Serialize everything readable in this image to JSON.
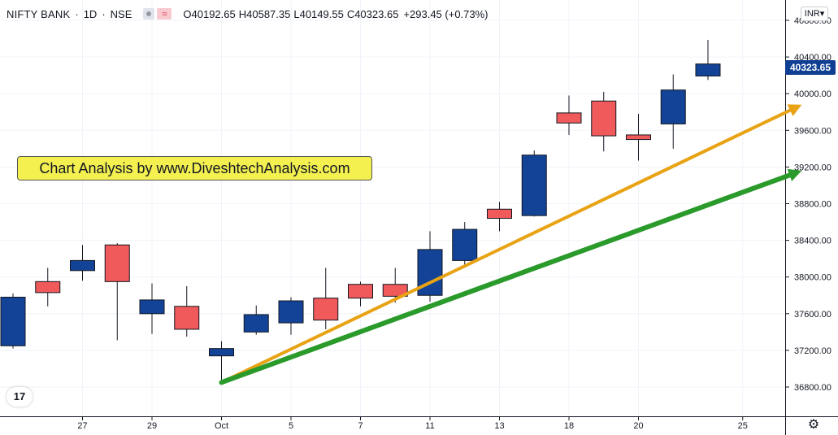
{
  "header": {
    "symbol": "NIFTY BANK",
    "interval": "1D",
    "exchange": "NSE",
    "open": "O40192.65",
    "high": "H40587.35",
    "low": "L40149.55",
    "close": "C40323.65",
    "change": "+293.45 (+0.73%)",
    "wave_icon": "≈"
  },
  "banner": {
    "text": "Chart Analysis by www.DiveshtechAnalysis.com"
  },
  "currency_button": "INR▾",
  "last_price": "40323.65",
  "tv_logo": "17",
  "settings_icon": "⚙",
  "colors": {
    "up": "#134397",
    "down": "#f05a5a",
    "trend_orange": "#e8a314",
    "trend_green": "#2a9a2a",
    "price_tag": "#0f3f93",
    "banner_bg": "#f3f050"
  },
  "chart_data": {
    "type": "candlestick",
    "y_range": [
      36600,
      40900
    ],
    "y_ticks": [
      36800,
      37200,
      37600,
      38000,
      38400,
      38800,
      39200,
      39600,
      40000,
      40400,
      40800
    ],
    "y_tick_labels": [
      "36800.00",
      "37200.00",
      "37600.00",
      "38000.00",
      "38400.00",
      "38800.00",
      "39200.00",
      "39600.00",
      "40000.00",
      "40400.00",
      "40800.00"
    ],
    "x_ticks": [
      {
        "index": 2,
        "label": "27"
      },
      {
        "index": 4,
        "label": "29"
      },
      {
        "index": 6,
        "label": "Oct"
      },
      {
        "index": 8,
        "label": "5"
      },
      {
        "index": 10,
        "label": "7"
      },
      {
        "index": 12,
        "label": "11"
      },
      {
        "index": 14,
        "label": "13"
      },
      {
        "index": 16,
        "label": "18"
      },
      {
        "index": 18,
        "label": "20"
      },
      {
        "index": 21,
        "label": "25"
      }
    ],
    "candles": [
      {
        "o": 37250,
        "h": 37820,
        "l": 37220,
        "c": 37780
      },
      {
        "o": 37950,
        "h": 38100,
        "l": 37680,
        "c": 37830
      },
      {
        "o": 38070,
        "h": 38350,
        "l": 37960,
        "c": 38180
      },
      {
        "o": 38350,
        "h": 38370,
        "l": 37310,
        "c": 37950
      },
      {
        "o": 37600,
        "h": 37930,
        "l": 37380,
        "c": 37750
      },
      {
        "o": 37680,
        "h": 37900,
        "l": 37350,
        "c": 37430
      },
      {
        "o": 37140,
        "h": 37300,
        "l": 36880,
        "c": 37220
      },
      {
        "o": 37400,
        "h": 37690,
        "l": 37370,
        "c": 37590
      },
      {
        "o": 37500,
        "h": 37780,
        "l": 37370,
        "c": 37740
      },
      {
        "o": 37770,
        "h": 38100,
        "l": 37430,
        "c": 37530
      },
      {
        "o": 37920,
        "h": 37950,
        "l": 37680,
        "c": 37770
      },
      {
        "o": 37920,
        "h": 38100,
        "l": 37720,
        "c": 37790
      },
      {
        "o": 37800,
        "h": 38500,
        "l": 37730,
        "c": 38300
      },
      {
        "o": 38180,
        "h": 38600,
        "l": 38100,
        "c": 38520
      },
      {
        "o": 38740,
        "h": 38820,
        "l": 38500,
        "c": 38640
      },
      {
        "o": 38670,
        "h": 39380,
        "l": 38660,
        "c": 39330
      },
      {
        "o": 39790,
        "h": 39980,
        "l": 39550,
        "c": 39680
      },
      {
        "o": 39920,
        "h": 40020,
        "l": 39370,
        "c": 39540
      },
      {
        "o": 39550,
        "h": 39780,
        "l": 39270,
        "c": 39500
      },
      {
        "o": 39670,
        "h": 40210,
        "l": 39400,
        "c": 40040
      },
      {
        "o": 40192.65,
        "h": 40587.35,
        "l": 40149.55,
        "c": 40323.65
      }
    ],
    "trendlines": [
      {
        "color": "orange",
        "from": {
          "index": 6,
          "y": 36850
        },
        "to": {
          "index": 22.7,
          "y": 39880
        }
      },
      {
        "color": "green",
        "from": {
          "index": 6,
          "y": 36850
        },
        "to": {
          "index": 22.7,
          "y": 39160
        }
      }
    ]
  }
}
